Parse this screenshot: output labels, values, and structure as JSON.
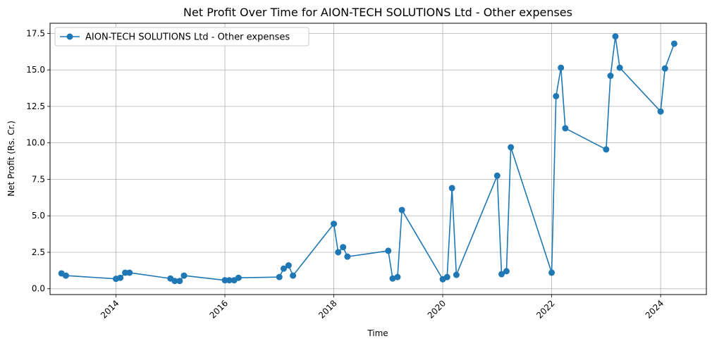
{
  "chart_data": {
    "type": "line",
    "title": "Net Profit Over Time for AION-TECH SOLUTIONS Ltd - Other expenses",
    "xlabel": "Time",
    "ylabel": "Net Profit (Rs. Cr.)",
    "xlim": [
      2012.79,
      2024.84
    ],
    "ylim": [
      -0.4,
      18.2
    ],
    "x_ticks": [
      2014,
      2016,
      2018,
      2020,
      2022,
      2024
    ],
    "y_ticks": [
      0.0,
      2.5,
      5.0,
      7.5,
      10.0,
      12.5,
      15.0,
      17.5
    ],
    "y_tick_labels": [
      "0.0",
      "2.5",
      "5.0",
      "7.5",
      "10.0",
      "12.5",
      "15.0",
      "17.5"
    ],
    "grid": true,
    "legend": "top-left",
    "color": "#1f77b4",
    "series": [
      {
        "name": "AION-TECH SOLUTIONS Ltd - Other expenses",
        "x": [
          2013.0,
          2013.08,
          2014.0,
          2014.08,
          2014.17,
          2014.25,
          2015.0,
          2015.08,
          2015.17,
          2015.25,
          2016.0,
          2016.08,
          2016.17,
          2016.25,
          2017.0,
          2017.08,
          2017.17,
          2017.25,
          2018.0,
          2018.08,
          2018.17,
          2018.25,
          2019.0,
          2019.08,
          2019.17,
          2019.25,
          2020.0,
          2020.08,
          2020.17,
          2020.25,
          2021.0,
          2021.08,
          2021.17,
          2021.25,
          2022.0,
          2022.08,
          2022.17,
          2022.25,
          2023.0,
          2023.08,
          2023.17,
          2023.25,
          2024.0,
          2024.08,
          2024.25
        ],
        "y": [
          1.05,
          0.9,
          0.68,
          0.75,
          1.1,
          1.1,
          0.7,
          0.53,
          0.53,
          0.9,
          0.58,
          0.58,
          0.58,
          0.75,
          0.8,
          1.38,
          1.6,
          0.9,
          4.45,
          2.5,
          2.85,
          2.2,
          2.6,
          0.7,
          0.8,
          5.4,
          0.65,
          0.8,
          6.9,
          0.95,
          7.75,
          1.0,
          1.2,
          9.7,
          1.1,
          13.2,
          15.15,
          11.0,
          9.55,
          14.6,
          17.3,
          15.15,
          12.15,
          15.1,
          16.8
        ]
      }
    ]
  }
}
